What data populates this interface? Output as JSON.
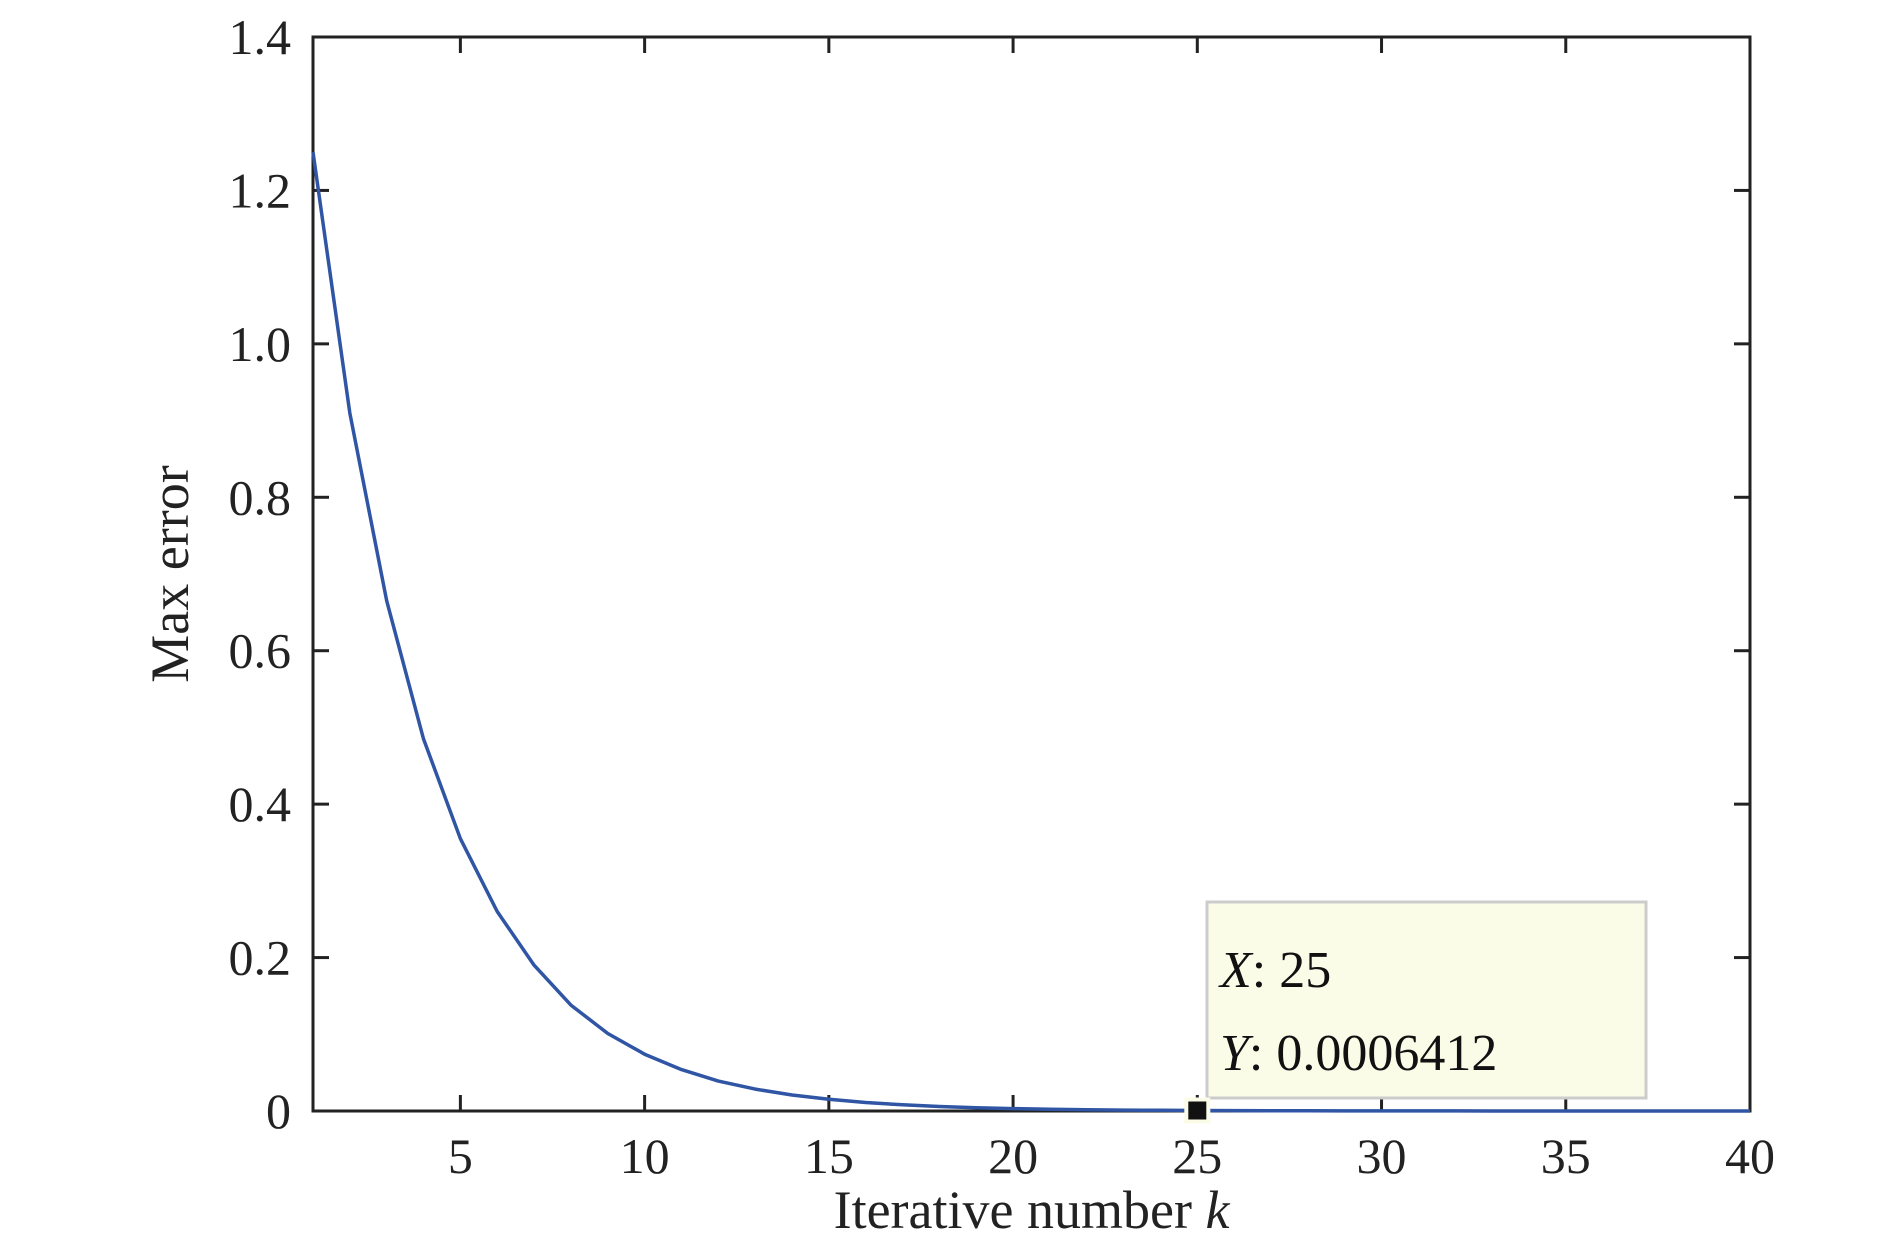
{
  "chart_data": {
    "type": "line",
    "title": "",
    "xlabel": "Iterative number",
    "xlabel_var": "k",
    "ylabel": "Max error",
    "xlim": [
      1,
      40
    ],
    "ylim": [
      0,
      1.4
    ],
    "xticks": [
      5,
      10,
      15,
      20,
      25,
      30,
      35,
      40
    ],
    "yticks": [
      0,
      0.2,
      0.4,
      0.6,
      0.8,
      1.0,
      1.2,
      1.4
    ],
    "ytick_labels": [
      "0",
      "0.2",
      "0.4",
      "0.6",
      "0.8",
      "1.0",
      "1.2",
      "1.4"
    ],
    "grid": false,
    "series": [
      {
        "color": "#2f55a4",
        "x": [
          1,
          2,
          3,
          4,
          5,
          6,
          7,
          8,
          9,
          10,
          11,
          12,
          13,
          14,
          15,
          16,
          17,
          18,
          19,
          20,
          21,
          22,
          23,
          24,
          25,
          26,
          27,
          28,
          29,
          30,
          31,
          32,
          33,
          34,
          35,
          36,
          37,
          38,
          39,
          40
        ],
        "y": [
          1.25,
          0.91,
          0.665,
          0.485,
          0.355,
          0.26,
          0.19,
          0.138,
          0.101,
          0.074,
          0.054,
          0.039,
          0.0285,
          0.0208,
          0.0152,
          0.0111,
          0.0081,
          0.0059,
          0.0043,
          0.0031,
          0.0023,
          0.0017,
          0.0012,
          0.00088,
          0.0006412,
          0.00047,
          0.00034,
          0.00025,
          0.00018,
          0.00013,
          0.0001,
          7e-05,
          5e-05,
          4e-05,
          3e-05,
          2e-05,
          1.5e-05,
          1e-05,
          8e-06,
          6e-06
        ]
      }
    ],
    "datatip": {
      "x": 25,
      "y": 0.0006412,
      "x_label": "X",
      "y_label": "Y",
      "x_text": "25",
      "y_text": "0.0006412",
      "bg_color": "#fbfce8",
      "border_color": "#cccccc"
    }
  }
}
